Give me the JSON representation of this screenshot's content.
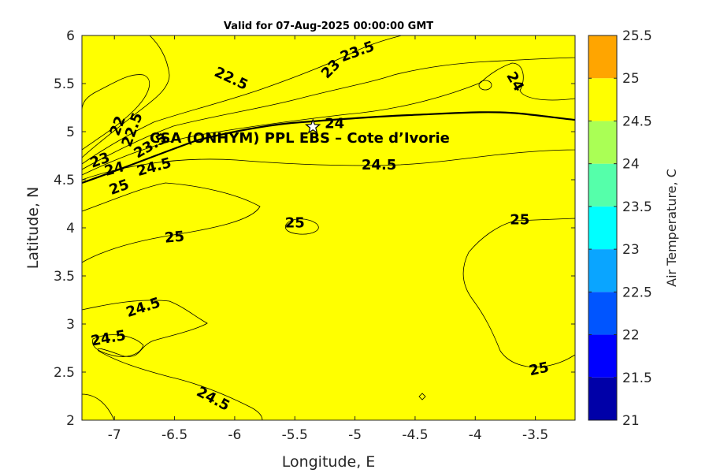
{
  "chart_data": {
    "type": "contour",
    "title": "Valid for 07-Aug-2025 00:00:00 GMT",
    "xlabel": "Longitude, E",
    "ylabel": "Latitude, N",
    "xlim": [
      -7.27,
      -3.17
    ],
    "ylim": [
      2,
      6
    ],
    "x_ticks": [
      -7,
      -6.5,
      -6,
      -5.5,
      -5,
      -4.5,
      -4,
      -3.5
    ],
    "x_tick_labels": [
      "-7",
      "-6.5",
      "-6",
      "-5.5",
      "-5",
      "-4.5",
      "-4",
      "-3.5"
    ],
    "y_ticks": [
      2,
      2.5,
      3,
      3.5,
      4,
      4.5,
      5,
      5.5,
      6
    ],
    "y_tick_labels": [
      "2",
      "2.5",
      "3",
      "3.5",
      "4",
      "4.5",
      "5",
      "5.5",
      "6"
    ],
    "colorbar": {
      "label": "Air Temperature, C",
      "levels": [
        21,
        21.5,
        22,
        22.5,
        23,
        23.5,
        24,
        24.5,
        25,
        25.5
      ],
      "tick_labels": [
        "21",
        "21.5",
        "22",
        "22.5",
        "23",
        "23.5",
        "24",
        "24.5",
        "25",
        "25.5"
      ],
      "colors": [
        "#0000a8",
        "#0000ff",
        "#0055ff",
        "#0aa5ff",
        "#00ffff",
        "#55ffaa",
        "#aaff55",
        "#ffff00",
        "#ffa500",
        "#ff5500"
      ]
    },
    "site": {
      "name": "CSA (ONHYM) PPL EBS  – Cote d’Ivorie",
      "lon": -5.35,
      "lat": 5.05
    },
    "contour_labels": [
      {
        "text": "22.5",
        "lon": -6.03,
        "lat": 5.55,
        "angle": 25
      },
      {
        "text": "23",
        "lon": -5.2,
        "lat": 5.65,
        "angle": -45
      },
      {
        "text": "23.5",
        "lon": -4.98,
        "lat": 5.83,
        "angle": -20
      },
      {
        "text": "24",
        "lon": -3.67,
        "lat": 5.52,
        "angle": 60
      },
      {
        "text": "24",
        "lon": -5.17,
        "lat": 5.08,
        "angle": 0
      },
      {
        "text": "22",
        "lon": -6.97,
        "lat": 5.06,
        "angle": -70
      },
      {
        "text": "22.5",
        "lon": -6.85,
        "lat": 5.02,
        "angle": -70
      },
      {
        "text": "23.5",
        "lon": -6.7,
        "lat": 4.85,
        "angle": -30
      },
      {
        "text": "23",
        "lon": -7.12,
        "lat": 4.7,
        "angle": -20
      },
      {
        "text": "24",
        "lon": -7.0,
        "lat": 4.61,
        "angle": -15
      },
      {
        "text": "24.5",
        "lon": -6.67,
        "lat": 4.63,
        "angle": -15
      },
      {
        "text": "25",
        "lon": -6.96,
        "lat": 4.42,
        "angle": -20
      },
      {
        "text": "24.5",
        "lon": -4.8,
        "lat": 4.65,
        "angle": 0
      },
      {
        "text": "25",
        "lon": -5.5,
        "lat": 4.05,
        "angle": 0
      },
      {
        "text": "25",
        "lon": -6.5,
        "lat": 3.9,
        "angle": -5
      },
      {
        "text": "25",
        "lon": -3.63,
        "lat": 4.08,
        "angle": 0
      },
      {
        "text": "24.5",
        "lon": -6.76,
        "lat": 3.17,
        "angle": -18
      },
      {
        "text": "24.5",
        "lon": -7.05,
        "lat": 2.85,
        "angle": -10
      },
      {
        "text": "24.5",
        "lon": -6.18,
        "lat": 2.22,
        "angle": 28
      },
      {
        "text": "25",
        "lon": -3.47,
        "lat": 2.53,
        "angle": -12
      }
    ]
  }
}
